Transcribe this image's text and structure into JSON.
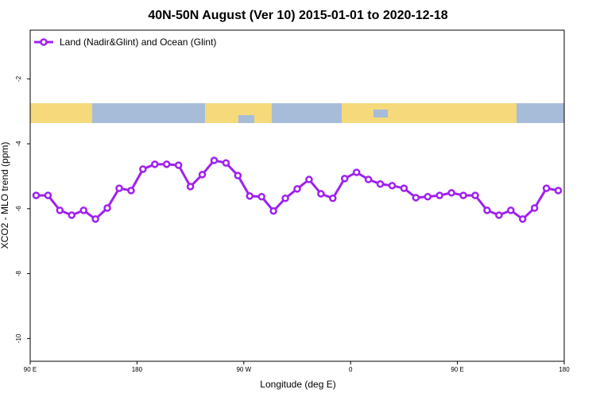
{
  "chart_data": {
    "type": "line",
    "title": "40N-50N August (Ver 10)   2015-01-01 to 2020-12-18",
    "x_label": "Longitude (deg E)",
    "y_label": "XCO2 - MLO trend (ppm)",
    "x": [
      95,
      105,
      115,
      125,
      135,
      145,
      155,
      165,
      175,
      185,
      195,
      205,
      215,
      225,
      235,
      245,
      255,
      265,
      275,
      285,
      295,
      305,
      315,
      325,
      335,
      345,
      355,
      365,
      375,
      385,
      395,
      405,
      415,
      425,
      435,
      445,
      455,
      465,
      475,
      485,
      495,
      505,
      515,
      525,
      535
    ],
    "series": [
      {
        "name": "Land (Nadir&Glint) and Ocean (Glint)",
        "color": "#a020f0",
        "values": [
          -5.59,
          -5.59,
          -6.05,
          -6.2,
          -6.05,
          -6.32,
          -5.98,
          -5.37,
          -5.44,
          -4.78,
          -4.63,
          -4.63,
          -4.66,
          -5.32,
          -4.95,
          -4.51,
          -4.59,
          -4.98,
          -5.61,
          -5.63,
          -6.07,
          -5.68,
          -5.39,
          -5.1,
          -5.54,
          -5.68,
          -5.07,
          -4.88,
          -5.1,
          -5.24,
          -5.29,
          -5.37,
          -5.66,
          -5.63,
          -5.59,
          -5.51,
          -5.59,
          -5.59,
          -6.05,
          -6.2,
          -6.05,
          -6.32,
          -5.98,
          -5.37,
          -5.44
        ]
      }
    ],
    "xlim": [
      90,
      540
    ],
    "xticks": [
      {
        "value": 90,
        "label": "90 E"
      },
      {
        "value": 180,
        "label": "180"
      },
      {
        "value": 270,
        "label": "90 W"
      },
      {
        "value": 360,
        "label": "0"
      },
      {
        "value": 450,
        "label": "90 E"
      },
      {
        "value": 540,
        "label": "180"
      }
    ],
    "ylim": [
      -10.7,
      -0.5
    ],
    "yticks": [
      -2,
      -4,
      -6,
      -8,
      -10
    ],
    "legend": "top-left"
  }
}
